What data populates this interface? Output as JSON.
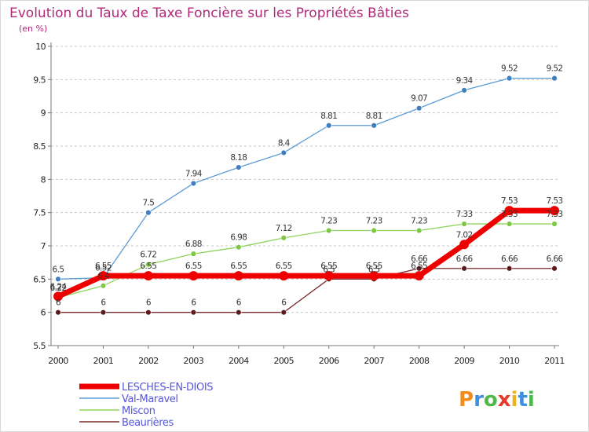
{
  "chart_data": {
    "type": "line",
    "title": "Evolution du Taux de Taxe Foncière sur les Propriétés Bâties",
    "subtitle": "(en %)",
    "xlabel": "",
    "ylabel": "",
    "x": [
      "2000",
      "2001",
      "2002",
      "2003",
      "2004",
      "2005",
      "2006",
      "2007",
      "2008",
      "2009",
      "2010",
      "2011"
    ],
    "ylim": [
      5.5,
      10
    ],
    "yticks": [
      "5.5",
      "6",
      "6.5",
      "7",
      "7.5",
      "8",
      "8.5",
      "9",
      "9.5",
      "10"
    ],
    "grid": "horizontal dashed",
    "legend_position": "bottom-left",
    "series": [
      {
        "name": "LESCHES-EN-DIOIS",
        "color": "#ee0000",
        "values": [
          6.24,
          6.55,
          6.55,
          6.55,
          6.55,
          6.55,
          6.55,
          6.55,
          6.55,
          7.02,
          7.53,
          7.53
        ],
        "labels": [
          "6.24",
          "6.55",
          "6.55",
          "6.55",
          "6.55",
          "6.55",
          "6.55",
          "6.55",
          "6.55",
          "7.02",
          "7.53",
          "7.53"
        ]
      },
      {
        "name": "Val-Maravel",
        "color": "#5b9bd5",
        "values": [
          6.5,
          6.52,
          7.5,
          7.94,
          8.18,
          8.4,
          8.81,
          8.81,
          9.07,
          9.34,
          9.52,
          9.52
        ],
        "labels": [
          "6.5",
          "6.52",
          "7.5",
          "7.94",
          "8.18",
          "8.4",
          "8.81",
          "8.81",
          "9.07",
          "9.34",
          "9.52",
          "9.52"
        ]
      },
      {
        "name": "Miscon",
        "color": "#8fd45a",
        "values": [
          6.22,
          6.4,
          6.72,
          6.88,
          6.98,
          7.12,
          7.23,
          7.23,
          7.23,
          7.33,
          7.33,
          7.33
        ],
        "labels": [
          "6.22",
          "6.4",
          "6.72",
          "6.88",
          "6.98",
          "7.12",
          "7.23",
          "7.23",
          "7.23",
          "7.33",
          "7.33",
          "7.33"
        ]
      },
      {
        "name": "Beaurières",
        "color": "#7a2a2a",
        "values": [
          6,
          6,
          6,
          6,
          6,
          6,
          6.5,
          6.5,
          6.66,
          6.66,
          6.66,
          6.66
        ],
        "labels": [
          "6",
          "6",
          "6",
          "6",
          "6",
          "6",
          "6.5",
          "6.5",
          "6.66",
          "6.66",
          "6.66",
          "6.66"
        ]
      }
    ]
  },
  "branding": {
    "watermark": "Proxiti"
  }
}
